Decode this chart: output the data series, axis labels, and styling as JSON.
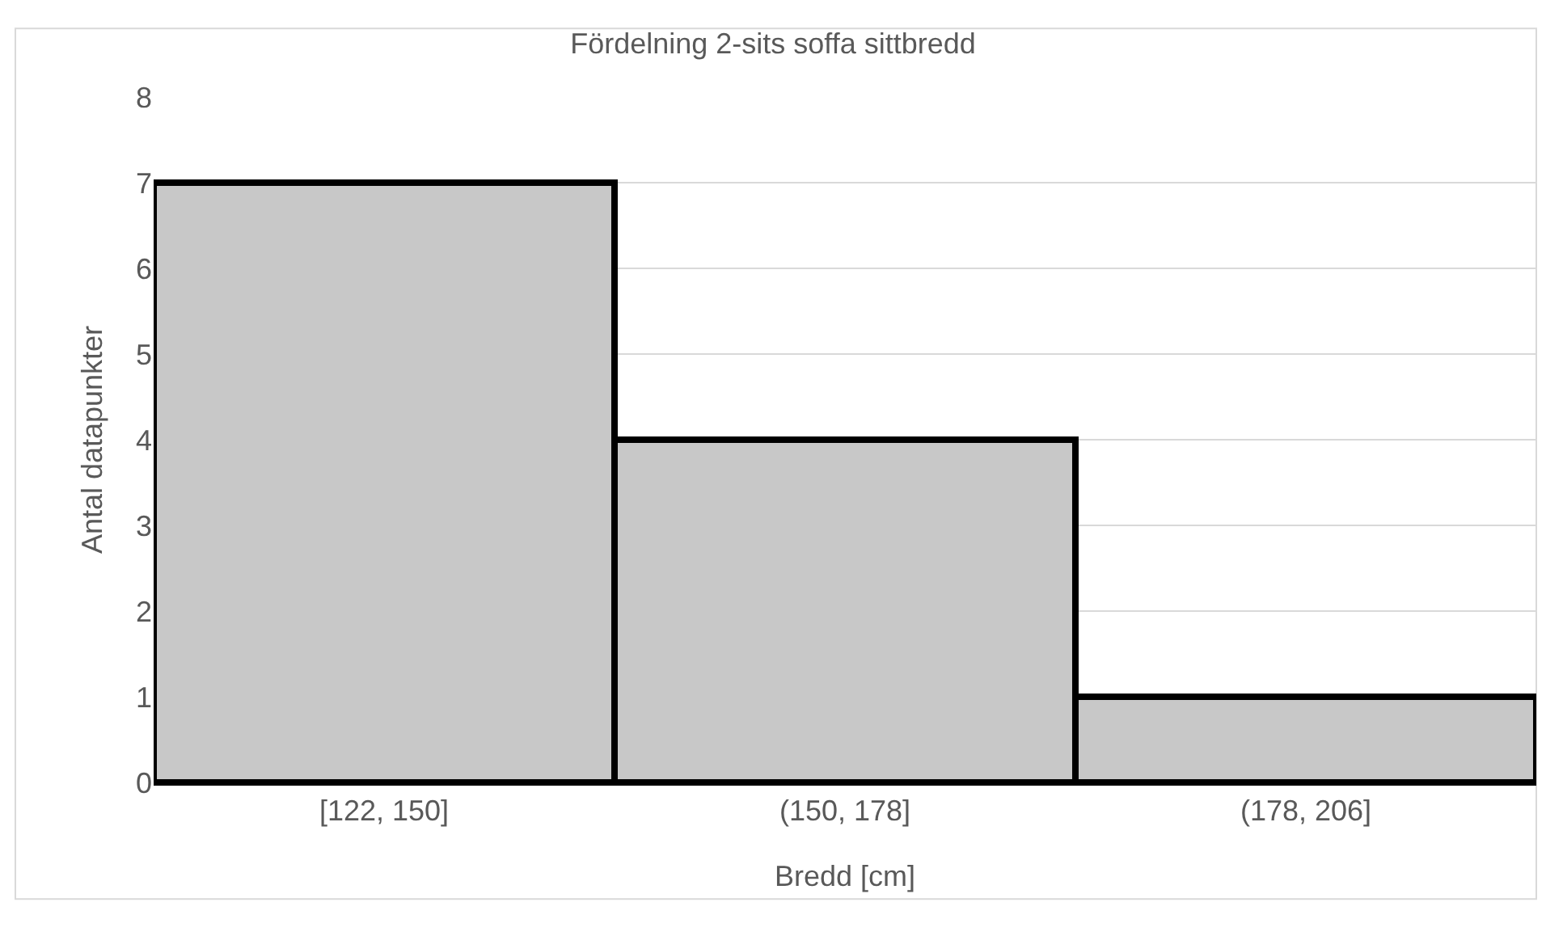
{
  "chart_data": {
    "type": "bar",
    "title": "Fördelning 2-sits soffa sittbredd",
    "xlabel": "Bredd [cm]",
    "ylabel": "Antal datapunkter",
    "categories": [
      "[122, 150]",
      "(150, 178]",
      "(178, 206]"
    ],
    "values": [
      7,
      4,
      1
    ],
    "color": "#c8c8c8",
    "ylim": [
      0,
      8
    ],
    "yticks": [
      0,
      1,
      2,
      3,
      4,
      5,
      6,
      7,
      8
    ],
    "grid": "y"
  }
}
